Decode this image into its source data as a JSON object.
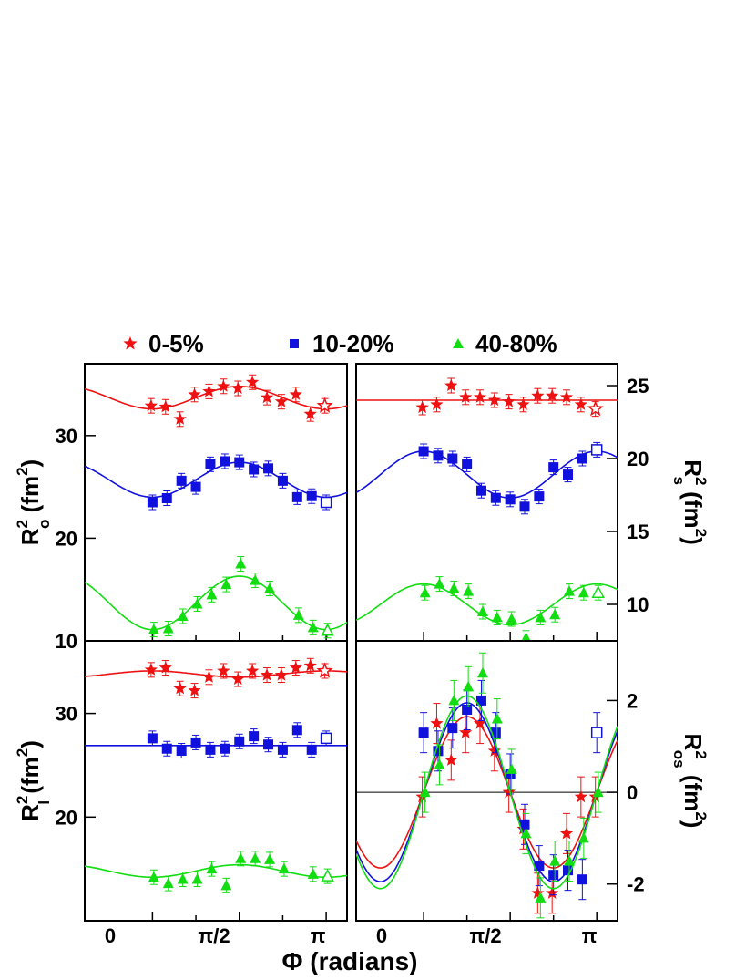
{
  "legend": [
    {
      "label": "0-5%",
      "color": "#ee1111",
      "marker": "star"
    },
    {
      "label": "10-20%",
      "color": "#1111dd",
      "marker": "square"
    },
    {
      "label": "40-80%",
      "color": "#11dd11",
      "marker": "triangle"
    }
  ],
  "x_axis_label": "Φ (radians)",
  "x_tick_labels": [
    "0",
    "π/2",
    "π"
  ],
  "chart_data": [
    {
      "type": "scatter",
      "panel": "top-left",
      "ylabel": "R_o^2 (fm^2)",
      "xlim": [
        -0.39,
        1.12
      ],
      "ylim": [
        10,
        37
      ],
      "yticks": [
        10,
        20,
        30
      ],
      "x": [
        0,
        0.0625,
        0.125,
        0.1875,
        0.25,
        0.3125,
        0.375,
        0.4375,
        0.5,
        0.5625,
        0.625,
        0.6875,
        0.75,
        0.8125,
        0.875,
        0.9375,
        1.0
      ],
      "series": [
        {
          "name": "0-5%",
          "values": [
            32.9,
            32.8,
            31.6,
            34.0,
            34.3,
            34.8,
            34.6,
            35.2,
            33.7,
            33.3,
            34.0,
            32.1,
            32.9
          ],
          "x_idx": [
            0,
            1,
            2,
            3,
            4,
            5,
            6,
            7,
            8,
            9,
            10,
            11,
            12
          ],
          "fit": {
            "c": 33.7,
            "a": -1.1
          }
        },
        {
          "name": "10-20%",
          "values": [
            23.5,
            23.9,
            25.6,
            25.0,
            27.2,
            27.5,
            27.4,
            26.7,
            26.8,
            25.6,
            24.0,
            24.1,
            23.5
          ],
          "x_idx": [
            0,
            1,
            2,
            3,
            4,
            5,
            6,
            7,
            8,
            9,
            10,
            11,
            12
          ],
          "fit": {
            "c": 25.7,
            "a": -1.7
          }
        },
        {
          "name": "40-80%",
          "values": [
            11.1,
            11.2,
            12.4,
            13.6,
            14.5,
            15.5,
            17.5,
            15.9,
            15.1,
            12.5,
            11.3,
            11.0
          ],
          "x_idx": [
            0,
            1,
            2,
            3,
            4,
            5,
            6,
            7,
            8,
            10,
            11,
            12
          ],
          "fit": {
            "c": 13.7,
            "a": -2.6
          }
        }
      ]
    },
    {
      "type": "scatter",
      "panel": "top-right",
      "ylabel": "R_s^2 (fm^2)",
      "xlim": [
        -0.39,
        1.12
      ],
      "ylim": [
        7.5,
        26.5
      ],
      "yticks": [
        10,
        15,
        20,
        25
      ],
      "series": [
        {
          "name": "0-5%",
          "values": [
            23.5,
            23.7,
            25.0,
            24.2,
            24.2,
            24.0,
            23.9,
            23.7,
            24.3,
            24.3,
            24.2,
            23.7,
            23.4
          ],
          "fit": {
            "c": 24.0,
            "a": 0.0
          }
        },
        {
          "name": "10-20%",
          "values": [
            20.5,
            20.2,
            20.0,
            19.6,
            17.8,
            17.3,
            17.2,
            16.7,
            17.4,
            19.4,
            18.9,
            20.0,
            20.6
          ],
          "fit": {
            "c": 18.9,
            "a": 1.6
          }
        },
        {
          "name": "40-80%",
          "values": [
            10.8,
            11.4,
            11.1,
            10.9,
            9.5,
            9.1,
            9.0,
            7.7,
            9.1,
            9.3,
            10.9,
            10.8,
            10.8
          ],
          "fit": {
            "c": 10.0,
            "a": 1.4
          }
        }
      ]
    },
    {
      "type": "scatter",
      "panel": "bottom-left",
      "ylabel": "R_l^2 (fm^2)",
      "xlim": [
        -0.39,
        1.12
      ],
      "ylim": [
        10,
        37
      ],
      "yticks": [
        20,
        30
      ],
      "series": [
        {
          "name": "0-5%",
          "values": [
            34.2,
            34.4,
            32.4,
            32.2,
            33.5,
            34.1,
            33.3,
            34.1,
            33.7,
            33.7,
            34.4,
            34.6,
            34.1
          ],
          "fit": {
            "c": 33.8,
            "a": 0.3
          }
        },
        {
          "name": "10-20%",
          "values": [
            27.6,
            26.6,
            26.4,
            27.2,
            26.5,
            26.6,
            27.3,
            27.8,
            27.0,
            26.5,
            28.4,
            26.5,
            27.6
          ],
          "fit": {
            "c": 26.9,
            "a": 0.0
          }
        },
        {
          "name": "40-80%",
          "values": [
            14.2,
            13.6,
            14.0,
            14.0,
            15.0,
            13.4,
            16.0,
            16.0,
            15.9,
            15.0,
            14.5,
            14.3
          ],
          "x_idx": [
            0,
            1,
            2,
            3,
            4,
            5,
            6,
            7,
            8,
            9,
            11,
            12
          ],
          "fit": {
            "c": 14.8,
            "a": -0.6
          }
        }
      ]
    },
    {
      "type": "scatter",
      "panel": "bottom-right",
      "ylabel": "R_os^2 (fm^2)",
      "xlim": [
        -0.39,
        1.12
      ],
      "ylim": [
        -2.8,
        3.3
      ],
      "yticks": [
        -2,
        0,
        2
      ],
      "series": [
        {
          "name": "0-5%",
          "values": [
            -0.1,
            1.5,
            0.7,
            1.3,
            1.5,
            0.9,
            0.0,
            -0.8,
            -2.2,
            -2.2,
            -0.9,
            -0.1,
            -0.1
          ],
          "fit": {
            "amp": 1.65
          }
        },
        {
          "name": "10-20%",
          "values": [
            1.3,
            0.9,
            1.4,
            1.8,
            2.0,
            1.3,
            0.4,
            -0.7,
            -1.6,
            -1.8,
            -1.7,
            -1.9,
            1.3
          ],
          "fit": {
            "amp": 1.95
          }
        },
        {
          "name": "40-80%",
          "values": [
            0.0,
            0.6,
            2.0,
            2.3,
            2.6,
            1.6,
            0.5,
            -0.9,
            -2.3,
            -1.5,
            -1.5,
            -1.0,
            0.0
          ],
          "fit": {
            "amp": 2.1
          }
        }
      ]
    }
  ]
}
